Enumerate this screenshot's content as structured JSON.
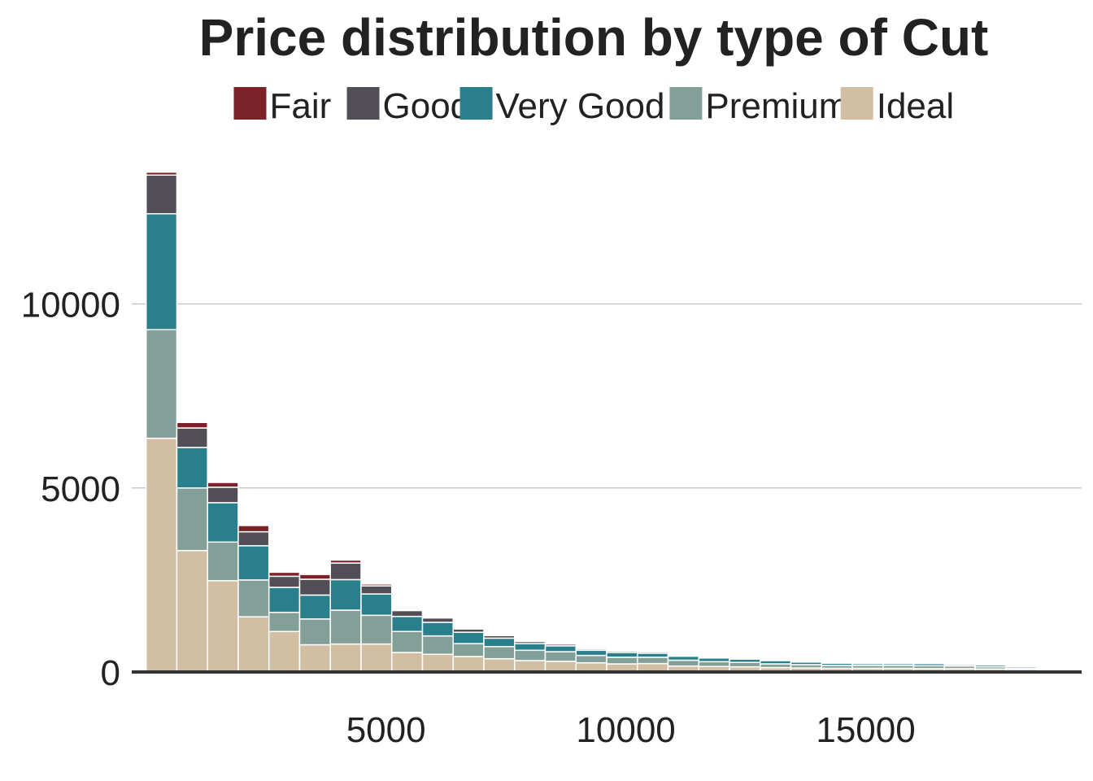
{
  "chart_data": {
    "type": "bar",
    "stacked": true,
    "title": "Price distribution by type of Cut",
    "xlabel": "",
    "ylabel": "",
    "legend_position": "top",
    "grid": "horizontal",
    "xlim": [
      -300,
      19500
    ],
    "ylim": [
      0,
      14500
    ],
    "x_ticks": [
      5000,
      10000,
      15000
    ],
    "y_ticks": [
      0,
      5000,
      10000
    ],
    "bin_width": 640,
    "bin_starts": [
      0,
      640,
      1280,
      1920,
      2560,
      3200,
      3840,
      4480,
      5120,
      5760,
      6400,
      7040,
      7680,
      8320,
      8960,
      9600,
      10240,
      10880,
      11520,
      12160,
      12800,
      13440,
      14080,
      14720,
      15360,
      16000,
      16640,
      17280,
      17920,
      18560
    ],
    "series": [
      {
        "name": "Ideal",
        "color": "#d2bfa3",
        "values": [
          6350,
          3300,
          2480,
          1500,
          1100,
          740,
          760,
          760,
          530,
          480,
          420,
          360,
          310,
          290,
          250,
          220,
          230,
          160,
          150,
          140,
          120,
          110,
          100,
          100,
          100,
          90,
          90,
          80,
          70,
          50
        ]
      },
      {
        "name": "Premium",
        "color": "#82a098",
        "values": [
          2950,
          1700,
          1050,
          1000,
          520,
          700,
          920,
          780,
          570,
          500,
          350,
          330,
          280,
          260,
          200,
          180,
          170,
          160,
          130,
          120,
          100,
          90,
          80,
          80,
          80,
          80,
          70,
          60,
          40,
          20
        ]
      },
      {
        "name": "Very Good",
        "color": "#2a7f8c",
        "values": [
          3150,
          1100,
          1070,
          930,
          680,
          650,
          830,
          580,
          410,
          370,
          310,
          230,
          180,
          160,
          140,
          130,
          110,
          110,
          100,
          90,
          90,
          70,
          60,
          50,
          50,
          60,
          40,
          50,
          40,
          10
        ]
      },
      {
        "name": "Good",
        "color": "#524e56",
        "values": [
          1050,
          530,
          420,
          380,
          300,
          430,
          450,
          220,
          160,
          120,
          90,
          70,
          60,
          50,
          40,
          40,
          40,
          30,
          30,
          30,
          20,
          20,
          20,
          20,
          20,
          20,
          20,
          20,
          20,
          10
        ]
      },
      {
        "name": "Fair",
        "color": "#7b2229",
        "values": [
          80,
          150,
          130,
          170,
          110,
          130,
          80,
          50,
          30,
          30,
          20,
          20,
          20,
          20,
          20,
          20,
          10,
          10,
          10,
          10,
          10,
          10,
          10,
          10,
          10,
          10,
          10,
          10,
          10,
          10
        ]
      }
    ],
    "legend_order": [
      "Fair",
      "Good",
      "Very Good",
      "Premium",
      "Ideal"
    ]
  }
}
